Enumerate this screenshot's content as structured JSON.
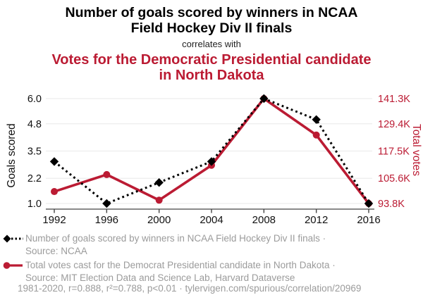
{
  "header": {
    "title": "Number of goals scored by winners in NCAA Field Hockey Div II finals",
    "connector": "correlates with",
    "subtitle": "Votes for the Democratic Presidential candidate in North Dakota"
  },
  "chart_data": {
    "type": "line",
    "x": [
      1992,
      1996,
      2000,
      2004,
      2008,
      2012,
      2016
    ],
    "x_tick_labels": [
      "1992",
      "1996",
      "2000",
      "2004",
      "2008",
      "2012",
      "2016"
    ],
    "series": [
      {
        "name": "Number of goals scored by winners in NCAA Field Hockey Div II finals",
        "axis": "left",
        "marker": "diamond",
        "line_style": "dotted",
        "values": [
          3,
          1,
          2,
          3,
          6,
          5,
          1
        ]
      },
      {
        "name": "Total votes cast for the Democrat Presidential candidate in North Dakota",
        "axis": "right",
        "marker": "circle",
        "line_style": "solid",
        "values_thousands": [
          99.2,
          106.9,
          95.3,
          111.1,
          141.3,
          124.8,
          93.8
        ]
      }
    ],
    "left_axis": {
      "label": "Goals scored",
      "ticks": [
        1.0,
        2.2,
        3.5,
        4.8,
        6.0
      ],
      "tick_labels": [
        "1.0",
        "2.2",
        "3.5",
        "4.8",
        "6.0"
      ],
      "range": [
        1.0,
        6.0
      ]
    },
    "right_axis": {
      "label": "Total votes",
      "tick_labels": [
        "93.8K",
        "105.6K",
        "117.5K",
        "129.4K",
        "141.3K"
      ],
      "range_thousands": [
        93.8,
        141.3
      ]
    },
    "grid": "horizontal",
    "legend_position": "bottom"
  },
  "legend": {
    "goals": {
      "line1": "Number of goals scored by winners in NCAA Field Hockey Div II finals ·",
      "line2": "Source: NCAA"
    },
    "votes": {
      "line1": "Total votes cast for the Democrat Presidential candidate in North Dakota ·",
      "line2": "Source: MIT Election Data and Science Lab, Harvard Dataverse"
    }
  },
  "footer": {
    "text": "1981-2020, r=0.888, r²=0.788, p<0.01 · tylervigen.com/spurious/correlation/20969"
  },
  "colors": {
    "accent_red": "#bb1b33",
    "text_grey": "#9b9b9b",
    "text_black": "#111111",
    "gridline": "#ededed",
    "axis": "#444444"
  }
}
